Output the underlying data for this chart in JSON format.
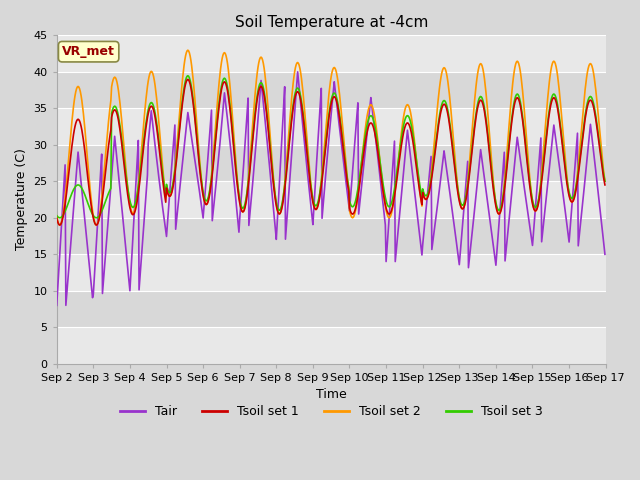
{
  "title": "Soil Temperature at -4cm",
  "xlabel": "Time",
  "ylabel": "Temperature (C)",
  "ylim": [
    0,
    45
  ],
  "yticks": [
    0,
    5,
    10,
    15,
    20,
    25,
    30,
    35,
    40,
    45
  ],
  "x_tick_labels": [
    "Sep 2",
    "Sep 3",
    "Sep 4",
    "Sep 5",
    "Sep 6",
    "Sep 7",
    "Sep 8",
    "Sep 9",
    "Sep 10",
    "Sep 11",
    "Sep 12",
    "Sep 13",
    "Sep 14",
    "Sep 15",
    "Sep 16",
    "Sep 17"
  ],
  "series_colors": {
    "Tair": "#9933cc",
    "Tsoil1": "#cc0000",
    "Tsoil2": "#ff9900",
    "Tsoil3": "#33cc00"
  },
  "annotation_text": "VR_met",
  "annotation_box_color": "#ffffcc",
  "annotation_text_color": "#990000",
  "fig_bg_color": "#d8d8d8",
  "plot_bg_color_light": "#e8e8e8",
  "plot_bg_color_dark": "#d8d8d8",
  "title_fontsize": 11,
  "axis_label_fontsize": 9,
  "tick_fontsize": 8,
  "legend_fontsize": 9,
  "line_width": 1.2
}
